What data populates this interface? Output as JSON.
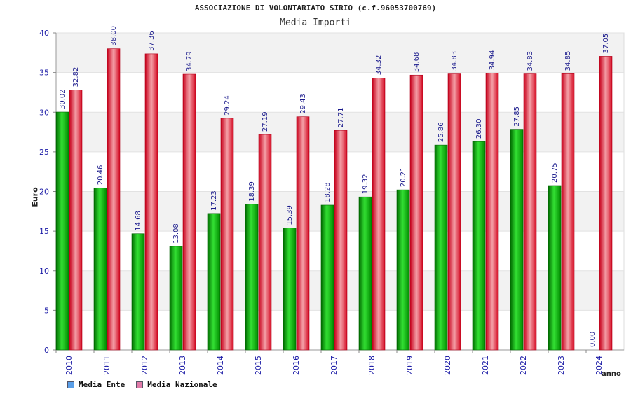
{
  "chart_data": {
    "type": "bar",
    "title": "ASSOCIAZIONE DI VOLONTARIATO SIRIO (c.f.96053700769)",
    "subtitle": "Media Importi",
    "xlabel": "anno",
    "ylabel": "Euro",
    "ylim": [
      0,
      40
    ],
    "yticks": [
      0,
      5,
      10,
      15,
      20,
      25,
      30,
      35,
      40
    ],
    "categories": [
      "2010",
      "2011",
      "2012",
      "2013",
      "2014",
      "2015",
      "2016",
      "2017",
      "2018",
      "2019",
      "2020",
      "2021",
      "2022",
      "2023",
      "2024"
    ],
    "series": [
      {
        "name": "Media Ente",
        "color": "#00b400",
        "values": [
          30.02,
          20.46,
          14.68,
          13.08,
          17.23,
          18.39,
          15.39,
          18.28,
          19.32,
          20.21,
          25.86,
          26.3,
          27.85,
          20.75,
          0.0
        ],
        "labels": [
          "30.02",
          "20.46",
          "14.68",
          "13.08",
          "17.23",
          "18.39",
          "15.39",
          "18.28",
          "19.32",
          "20.21",
          "25.86",
          "26.30",
          "27.85",
          "20.75",
          "0.00"
        ]
      },
      {
        "name": "Media Nazionale",
        "color": "#e8102a",
        "values": [
          32.82,
          38.0,
          37.36,
          34.79,
          29.24,
          27.19,
          29.43,
          27.71,
          34.32,
          34.68,
          34.83,
          34.94,
          34.83,
          34.85,
          37.05
        ],
        "labels": [
          "32.82",
          "38.00",
          "37.36",
          "34.79",
          "29.24",
          "27.19",
          "29.43",
          "27.71",
          "34.32",
          "34.68",
          "34.83",
          "34.94",
          "34.83",
          "34.85",
          "37.05"
        ]
      }
    ],
    "legend": [
      {
        "label": "Media Ente",
        "color": "#5a9fe8"
      },
      {
        "label": "Media Nazionale",
        "color": "#e07aa8"
      }
    ],
    "grid": true,
    "legend_position": "bottom-left"
  }
}
